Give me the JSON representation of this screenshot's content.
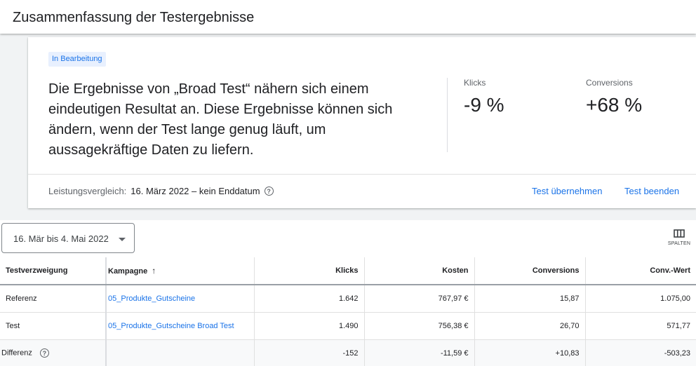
{
  "header": {
    "title": "Zusammenfassung der Testergebnisse"
  },
  "summary_card": {
    "status_badge": "In Bearbeitung",
    "summary_text": "Die Ergebnisse von „Broad Test“ nähern sich einem eindeutigen Resultat an. Diese Ergebnisse können sich ändern, wenn der Test lange genug läuft, um aussagekräftige Daten zu liefern.",
    "metrics": [
      {
        "label": "Klicks",
        "value": "-9 %"
      },
      {
        "label": "Conversions",
        "value": "+68 %"
      }
    ],
    "comparison_label": "Leistungsvergleich:",
    "comparison_range": "16. März 2022 – kein Enddatum",
    "apply_label": "Test übernehmen",
    "end_label": "Test beenden",
    "accent_color": "#1a73e8"
  },
  "toolbar": {
    "date_range": "16. Mär bis 4. Mai 2022",
    "columns_label": "SPALTEN"
  },
  "table": {
    "headers": [
      "Testverzweigung",
      "Kampagne",
      "Klicks",
      "Kosten",
      "Conversions",
      "Conv.-Wert"
    ],
    "sort_icon": "arrow-up-icon",
    "rows": [
      {
        "branch": "Referenz",
        "campaign": "05_Produkte_Gutscheine",
        "clicks": "1.642",
        "cost": "767,97 €",
        "conversions": "15,87",
        "conv_value": "1.075,00"
      },
      {
        "branch": "Test",
        "campaign": "05_Produkte_Gutscheine Broad Test",
        "clicks": "1.490",
        "cost": "756,38 €",
        "conversions": "26,70",
        "conv_value": "571,77"
      },
      {
        "branch": "Differenz",
        "campaign": "",
        "clicks": "-152",
        "cost": "-11,59 €",
        "conversions": "+10,83",
        "conv_value": "-503,23"
      }
    ]
  }
}
